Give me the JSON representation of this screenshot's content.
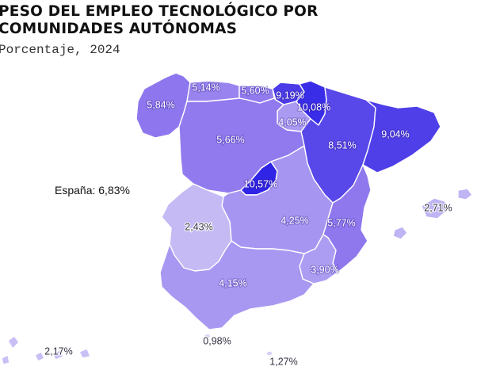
{
  "title_lines": [
    "Peso del empleo tecnológico por",
    "comunidades autónomas"
  ],
  "subtitle": "Porcentaje, 2024",
  "national_note": "España: 6,83%",
  "color_scale": {
    "min_color": "#dcd6f7",
    "mid_color": "#8f78ee",
    "max_color": "#3024e6"
  },
  "regions": [
    {
      "id": "galicia",
      "name": "Galicia",
      "value": 5.84,
      "label": "5,84%"
    },
    {
      "id": "asturias",
      "name": "Asturias",
      "value": 5.14,
      "label": "5,14%"
    },
    {
      "id": "cantabria",
      "name": "Cantabria",
      "value": 5.6,
      "label": "5,60%"
    },
    {
      "id": "pais-vasco",
      "name": "País Vasco",
      "value": 9.19,
      "label": "9,19%"
    },
    {
      "id": "navarra",
      "name": "Navarra",
      "value": 10.08,
      "label": "10,08%"
    },
    {
      "id": "la-rioja",
      "name": "La Rioja",
      "value": 4.05,
      "label": "4,05%"
    },
    {
      "id": "aragon",
      "name": "Aragón",
      "value": 8.51,
      "label": "8,51%"
    },
    {
      "id": "cataluna",
      "name": "Cataluña",
      "value": 9.04,
      "label": "9,04%"
    },
    {
      "id": "castilla-leon",
      "name": "Castilla y León",
      "value": 5.66,
      "label": "5,66%"
    },
    {
      "id": "madrid",
      "name": "Madrid",
      "value": 10.57,
      "label": "10,57%"
    },
    {
      "id": "castilla-la-mancha",
      "name": "Castilla-La Mancha",
      "value": 4.25,
      "label": "4,25%"
    },
    {
      "id": "comunitat-valenciana",
      "name": "Comunitat Valenciana",
      "value": 5.77,
      "label": "5,77%"
    },
    {
      "id": "extremadura",
      "name": "Extremadura",
      "value": 2.43,
      "label": "2,43%"
    },
    {
      "id": "murcia",
      "name": "Murcia",
      "value": 3.9,
      "label": "3,90%"
    },
    {
      "id": "andalucia",
      "name": "Andalucía",
      "value": 4.15,
      "label": "4,15%"
    },
    {
      "id": "ceuta",
      "name": "Ceuta",
      "value": 0.98,
      "label": "0,98%"
    },
    {
      "id": "melilla",
      "name": "Melilla",
      "value": 1.27,
      "label": "1,27%"
    },
    {
      "id": "baleares",
      "name": "Illes Balears",
      "value": 2.71,
      "label": "2,71%"
    },
    {
      "id": "canarias",
      "name": "Canarias",
      "value": 2.17,
      "label": "2,17%"
    }
  ]
}
